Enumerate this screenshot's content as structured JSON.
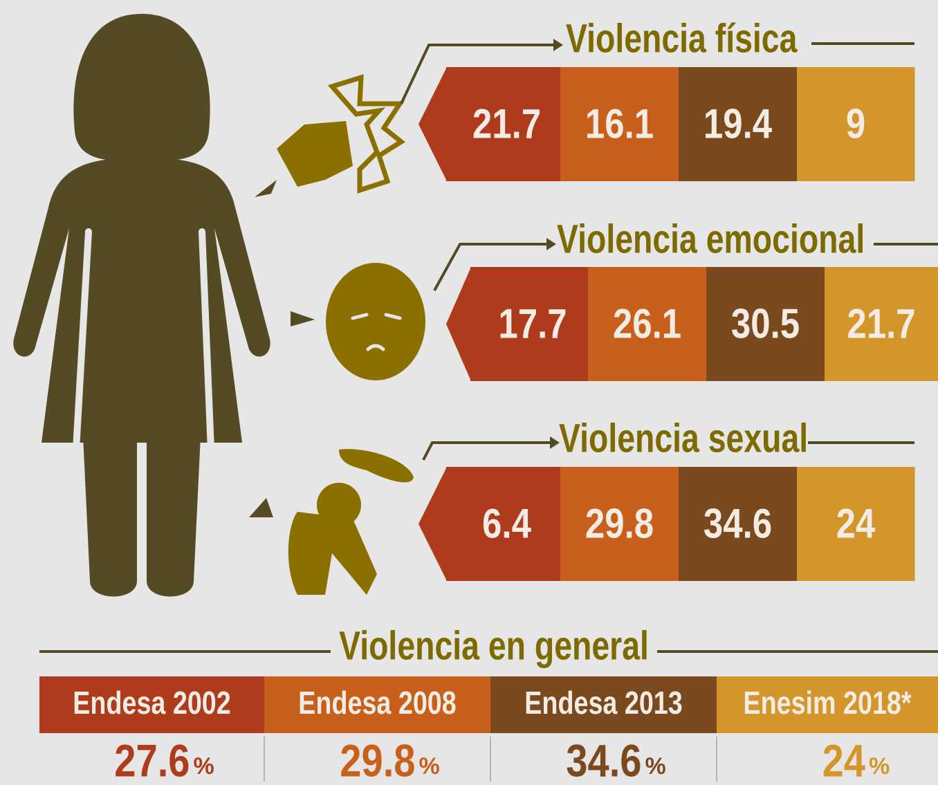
{
  "sections": [
    {
      "title": "Violencia física",
      "values": [
        "21.7",
        "16.1",
        "19.4",
        "9"
      ]
    },
    {
      "title": "Violencia emocional",
      "values": [
        "17.7",
        "26.1",
        "30.5",
        "21.7"
      ]
    },
    {
      "title": "Violencia sexual",
      "values": [
        "6.4",
        "29.8",
        "34.6",
        "24"
      ]
    }
  ],
  "general": {
    "title": "Violencia en general",
    "columns": [
      {
        "label": "Endesa 2002",
        "value": "27.6",
        "unit": "%"
      },
      {
        "label": "Endesa 2008",
        "value": "29.8",
        "unit": "%"
      },
      {
        "label": "Endesa 2013",
        "value": "34.6",
        "unit": "%"
      },
      {
        "label": "Enesim 2018*",
        "value": "24",
        "unit": "%"
      }
    ]
  }
}
